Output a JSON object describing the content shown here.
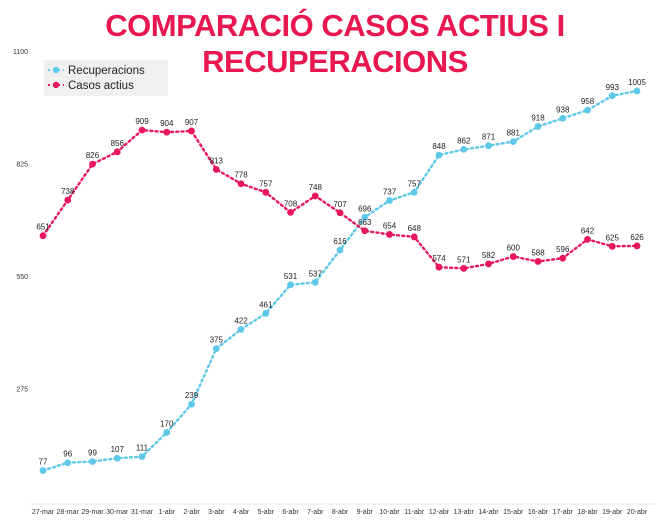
{
  "chart_data": {
    "type": "line",
    "title": "COMPARACIÓ CASOS ACTIUS I RECUPERACIONS",
    "xlabel": "",
    "ylabel": "",
    "ylim": [
      0,
      1100
    ],
    "yticks": [
      275,
      550,
      825,
      1100
    ],
    "grid": false,
    "legend_position": "top-left",
    "categories": [
      "27-mar",
      "28-mar",
      "29-mar",
      "30-mar",
      "31-mar",
      "1-abr",
      "2-abr",
      "3-abr",
      "4-abr",
      "5-abr",
      "6-abr",
      "7-abr",
      "8-abr",
      "9-abr",
      "10-abr",
      "11-abr",
      "12-abr",
      "13-abr",
      "14-abr",
      "15-abr",
      "16-abr",
      "17-abr",
      "18-abr",
      "19-abr",
      "20-abr"
    ],
    "series": [
      {
        "name": "Recuperacions",
        "color": "#5ec8e8",
        "values": [
          77,
          96,
          99,
          107,
          111,
          170,
          239,
          375,
          422,
          461,
          531,
          537,
          616,
          696,
          737,
          757,
          848,
          862,
          871,
          881,
          918,
          938,
          958,
          993,
          1005
        ]
      },
      {
        "name": "Casos actius",
        "color": "#e8175d",
        "values": [
          651,
          738,
          826,
          856,
          909,
          904,
          907,
          813,
          778,
          757,
          708,
          748,
          707,
          663,
          654,
          648,
          574,
          571,
          582,
          600,
          588,
          596,
          642,
          625,
          626
        ]
      }
    ]
  }
}
